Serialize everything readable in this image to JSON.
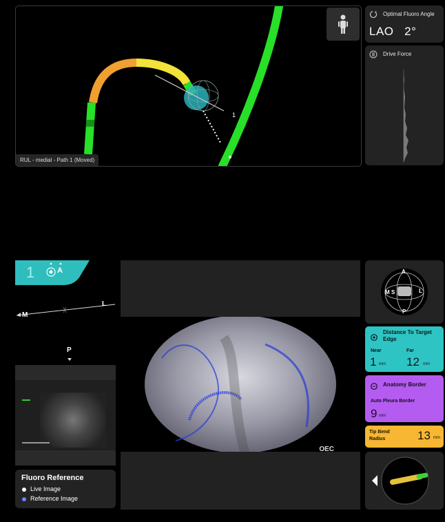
{
  "nav_view": {
    "path_label": "RUL - medial - Path 1 (Moved)",
    "target_marker": "1",
    "person_icon": "person-icon"
  },
  "fluoro_angle": {
    "title": "Optimal Fluoro Angle",
    "value": "LAO   2°"
  },
  "drive_force": {
    "title": "Drive Force"
  },
  "orientation": {
    "badge_number": "1",
    "badge_letter": "A",
    "left_label": "M",
    "right_label": "L",
    "bottom_label": "P"
  },
  "fluoro_reference": {
    "title": "Fluoro Reference",
    "live_label": "Live Image",
    "reference_label": "Reference Image",
    "live_color": "#ffffff",
    "reference_color": "#6b86ff"
  },
  "fluoro_image": {
    "oec_label": "OEC"
  },
  "compass": {
    "top": "A",
    "left": "M",
    "right": "L",
    "bottom": "P",
    "center": "S"
  },
  "distance_to_target": {
    "title": "Distance To Target Edge",
    "near_label": "Near",
    "near_value": "1",
    "near_unit": "mm",
    "far_label": "Far",
    "far_value": "12",
    "far_unit": "mm",
    "color": "#2fc4c4"
  },
  "anatomy_border": {
    "title": "Anatomy Border",
    "subtitle": "Auto Pleura Border",
    "value": "9",
    "unit": "mm",
    "color": "#b45cf0"
  },
  "tip_bend": {
    "title": "Tip Bend Radius",
    "value": "13",
    "unit": "mm",
    "color": "#f7b733"
  }
}
